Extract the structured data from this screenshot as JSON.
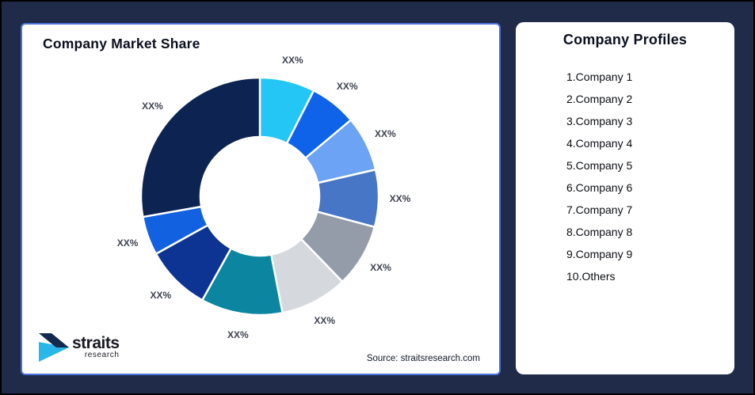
{
  "frame": {
    "background_color": "#202b49"
  },
  "chart_card": {
    "title": "Company Market Share",
    "border_color": "#4a72da",
    "source_note": "Source: straitsresearch.com",
    "logo": {
      "line1": "straits",
      "line2": "research",
      "arrow_navy": "#13294f",
      "arrow_cyan": "#29b7ea"
    }
  },
  "chart_data": {
    "type": "pie",
    "subtype": "donut",
    "title": "Company Market Share",
    "inner_radius_ratio": 0.5,
    "start_angle_deg": 0,
    "direction": "clockwise",
    "label_color": "#3f4350",
    "segments": [
      {
        "label": "XX%",
        "sweep_deg": 27,
        "color": "#24c6f5"
      },
      {
        "label": "XX%",
        "sweep_deg": 23,
        "color": "#0e63e9"
      },
      {
        "label": "XX%",
        "sweep_deg": 27,
        "color": "#6da3f4"
      },
      {
        "label": "XX%",
        "sweep_deg": 28,
        "color": "#4876c6"
      },
      {
        "label": "XX%",
        "sweep_deg": 31,
        "color": "#949ca9"
      },
      {
        "label": "XX%",
        "sweep_deg": 33,
        "color": "#d5d8dc"
      },
      {
        "label": "XX%",
        "sweep_deg": 40,
        "color": "#0c86a0"
      },
      {
        "label": "XX%",
        "sweep_deg": 32,
        "color": "#0d3493"
      },
      {
        "label": "XX%",
        "sweep_deg": 19,
        "color": "#1161e0"
      },
      {
        "label": "XX%",
        "sweep_deg": 100,
        "color": "#0d2453"
      }
    ]
  },
  "profiles": {
    "title": "Company Profiles",
    "items": [
      "1.Company 1",
      "2.Company 2",
      "3.Company 3",
      "4.Company 4",
      "5.Company 5",
      "6.Company 6",
      "7.Company 7",
      "8.Company 8",
      "9.Company 9",
      "10.Others"
    ]
  }
}
